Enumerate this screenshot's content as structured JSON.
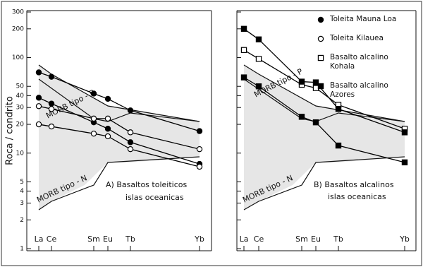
{
  "chart_data": [
    {
      "type": "line",
      "y_label": "Roca / condrito",
      "log_y": true,
      "categories": [
        "La",
        "Ce",
        "Sm",
        "Eu",
        "Tb",
        "Yb"
      ],
      "ylim": [
        1,
        300
      ],
      "yticks": [
        1,
        2,
        3,
        4,
        5,
        10,
        20,
        30,
        40,
        50,
        100,
        200,
        300
      ],
      "ytick_labels": true,
      "annotations": [
        "A) Basaltos toleiticos",
        "islas oceanicas",
        "MORB tipo - P",
        "MORB tipo - N"
      ],
      "series": [
        {
          "name": "Toleita Mauna Loa",
          "marker": "filled-circle",
          "color": "#000000",
          "values": [
            70,
            63,
            42,
            37,
            28,
            17
          ]
        },
        {
          "name": "Toleita Mauna Loa",
          "marker": "filled-circle",
          "color": "#000000",
          "values": [
            38,
            33,
            21,
            18,
            13,
            7.7
          ]
        },
        {
          "name": "Toleita Kilauea",
          "marker": "open-circle",
          "color": "#000000",
          "values": [
            31,
            29,
            23,
            23,
            16.5,
            11
          ]
        },
        {
          "name": "Toleita Kilauea",
          "marker": "open-circle",
          "color": "#000000",
          "values": [
            20,
            19,
            16,
            15,
            11,
            7.2
          ]
        }
      ]
    },
    {
      "type": "line",
      "log_y": true,
      "categories": [
        "La",
        "Ce",
        "Sm",
        "Eu",
        "Tb",
        "Yb"
      ],
      "ylim": [
        1,
        300
      ],
      "yticks": [
        1,
        2,
        3,
        4,
        5,
        10,
        20,
        30,
        40,
        50,
        100,
        200,
        300
      ],
      "ytick_labels": false,
      "annotations": [
        "B) Basaltos alcalinos",
        "islas oceanicas",
        "MORB tipo - P",
        "MORB tipo - N"
      ],
      "series": [
        {
          "name": "Basalto alcalino Kohala",
          "marker": "open-square",
          "color": "#000000",
          "values": [
            120,
            97,
            52,
            48,
            32,
            18
          ]
        },
        {
          "name": "Basalto alcalino Azores",
          "marker": "filled-square",
          "color": "#000000",
          "values": [
            200,
            155,
            56,
            55,
            29,
            16.5
          ]
        },
        {
          "name": "Basalto alcalino Azores",
          "marker": "filled-square",
          "color": "#000000",
          "values": [
            62,
            50,
            24,
            21,
            12,
            8
          ]
        }
      ]
    }
  ]
}
